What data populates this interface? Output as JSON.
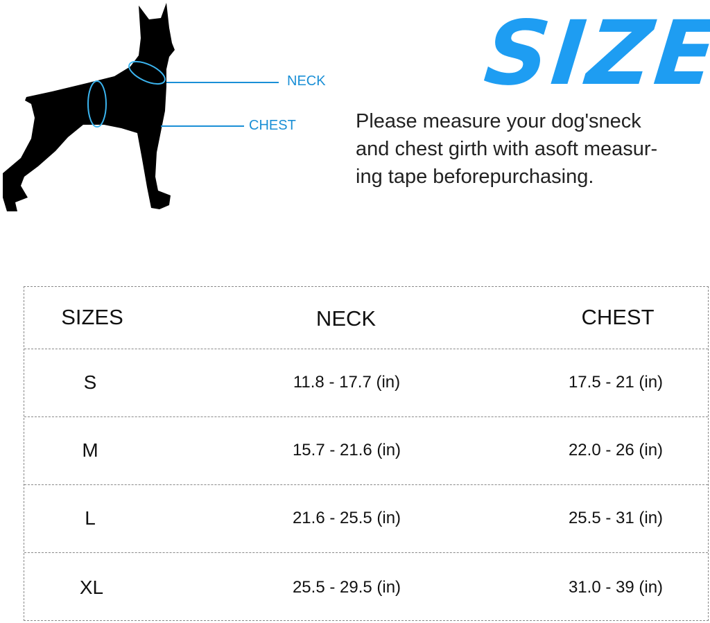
{
  "diagram": {
    "neck_label": "NECK",
    "chest_label": "CHEST",
    "accent": "#1a8fd6"
  },
  "title": "SIZE",
  "description_lines": [
    "Please measure your dog'sneck",
    "and chest girth with asoft measur-",
    "ing tape beforepurchasing."
  ],
  "table": {
    "headers": [
      "SIZES",
      "NECK",
      "CHEST"
    ],
    "rows": [
      {
        "size": "S",
        "neck": "11.8 - 17.7 (in)",
        "chest": "17.5 - 21 (in)"
      },
      {
        "size": "M",
        "neck": "15.7 - 21.6 (in)",
        "chest": "22.0 - 26 (in)"
      },
      {
        "size": "L",
        "neck": "21.6 - 25.5 (in)",
        "chest": "25.5 - 31 (in)"
      },
      {
        "size": "XL",
        "neck": "25.5 - 29.5 (in)",
        "chest": "31.0 - 39 (in)"
      }
    ]
  }
}
